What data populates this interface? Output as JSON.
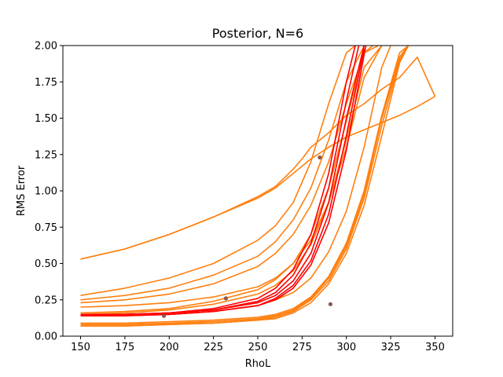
{
  "chart_data": {
    "type": "line",
    "title": "Posterior, N=6",
    "xlabel": "RhoL",
    "ylabel": "RMS Error",
    "xlim": [
      140,
      360
    ],
    "ylim": [
      0,
      2.0
    ],
    "xticks": [
      "150",
      "175",
      "200",
      "225",
      "250",
      "275",
      "300",
      "325",
      "350"
    ],
    "yticks": [
      "0.00",
      "0.25",
      "0.50",
      "0.75",
      "1.00",
      "1.25",
      "1.50",
      "1.75",
      "2.00"
    ],
    "grid": false,
    "legend": "none",
    "colors": {
      "orange": "#ff7f0e",
      "red": "#ff0000",
      "points": "#8c564b"
    },
    "series": [
      {
        "color": "orange",
        "x": [
          150,
          175,
          200,
          225,
          250,
          260,
          270,
          275,
          280,
          290,
          300,
          310,
          320,
          330,
          340,
          350
        ],
        "y": [
          0.53,
          0.6,
          0.7,
          0.82,
          0.96,
          1.03,
          1.15,
          1.22,
          1.3,
          1.4,
          1.52,
          1.6,
          1.7,
          1.78,
          1.92,
          1.65
        ]
      },
      {
        "color": "orange",
        "x": [
          150,
          175,
          200,
          225,
          250,
          260,
          270,
          280,
          290,
          300,
          310,
          320,
          330,
          340,
          350
        ],
        "y": [
          0.53,
          0.6,
          0.7,
          0.82,
          0.95,
          1.02,
          1.12,
          1.22,
          1.3,
          1.37,
          1.42,
          1.47,
          1.52,
          1.58,
          1.65
        ]
      },
      {
        "color": "orange",
        "x": [
          150,
          175,
          200,
          225,
          250,
          260,
          270,
          280,
          290,
          300,
          305
        ],
        "y": [
          0.28,
          0.33,
          0.4,
          0.5,
          0.66,
          0.76,
          0.92,
          1.2,
          1.6,
          1.95,
          2.0
        ]
      },
      {
        "color": "orange",
        "x": [
          150,
          175,
          200,
          225,
          250,
          260,
          270,
          280,
          290,
          300,
          310
        ],
        "y": [
          0.25,
          0.28,
          0.33,
          0.42,
          0.55,
          0.65,
          0.8,
          1.02,
          1.35,
          1.75,
          2.0
        ]
      },
      {
        "color": "orange",
        "x": [
          150,
          175,
          200,
          225,
          250,
          260,
          270,
          280,
          290,
          300,
          310,
          315
        ],
        "y": [
          0.23,
          0.25,
          0.29,
          0.36,
          0.48,
          0.57,
          0.7,
          0.9,
          1.2,
          1.6,
          1.95,
          2.0
        ]
      },
      {
        "color": "orange",
        "x": [
          150,
          175,
          200,
          225,
          250,
          260,
          270,
          280,
          290,
          300,
          310,
          320
        ],
        "y": [
          0.2,
          0.21,
          0.23,
          0.27,
          0.34,
          0.4,
          0.5,
          0.66,
          0.92,
          1.3,
          1.78,
          2.0
        ]
      },
      {
        "color": "orange",
        "x": [
          150,
          175,
          200,
          225,
          250,
          260,
          270,
          280,
          290,
          300,
          310,
          320,
          325
        ],
        "y": [
          0.14,
          0.14,
          0.15,
          0.17,
          0.21,
          0.25,
          0.3,
          0.4,
          0.58,
          0.86,
          1.3,
          1.85,
          2.0
        ]
      },
      {
        "color": "orange",
        "x": [
          150,
          175,
          200,
          225,
          250,
          260,
          270,
          280,
          290,
          300,
          310,
          320,
          330,
          335
        ],
        "y": [
          0.07,
          0.07,
          0.08,
          0.09,
          0.11,
          0.13,
          0.17,
          0.25,
          0.38,
          0.6,
          0.95,
          1.45,
          1.9,
          2.0
        ]
      },
      {
        "color": "orange",
        "x": [
          150,
          175,
          200,
          225,
          250,
          260,
          270,
          280,
          290,
          300,
          310,
          320,
          330,
          335
        ],
        "y": [
          0.09,
          0.09,
          0.1,
          0.11,
          0.13,
          0.15,
          0.19,
          0.27,
          0.41,
          0.64,
          1.0,
          1.52,
          1.95,
          2.0
        ]
      },
      {
        "color": "orange",
        "x": [
          150,
          175,
          200,
          225,
          250,
          260,
          270,
          280,
          290,
          300,
          310,
          320,
          330,
          335
        ],
        "y": [
          0.08,
          0.08,
          0.09,
          0.1,
          0.12,
          0.14,
          0.18,
          0.26,
          0.4,
          0.62,
          0.98,
          1.5,
          1.92,
          2.0
        ]
      },
      {
        "color": "orange",
        "x": [
          150,
          175,
          200,
          225,
          250,
          260,
          270,
          280,
          290,
          300,
          310,
          320,
          330,
          335
        ],
        "y": [
          0.07,
          0.07,
          0.08,
          0.09,
          0.11,
          0.12,
          0.16,
          0.23,
          0.36,
          0.57,
          0.9,
          1.38,
          1.88,
          2.0
        ]
      },
      {
        "color": "orange",
        "x": [
          150,
          175,
          200,
          225,
          250,
          260,
          270,
          280,
          290,
          300,
          310,
          320,
          330,
          335
        ],
        "y": [
          0.08,
          0.08,
          0.09,
          0.1,
          0.12,
          0.14,
          0.18,
          0.26,
          0.4,
          0.62,
          0.98,
          1.5,
          1.92,
          2.0
        ]
      },
      {
        "color": "orange",
        "x": [
          150,
          175,
          200,
          225,
          250,
          260,
          270,
          280,
          290,
          300,
          310,
          320
        ],
        "y": [
          0.15,
          0.16,
          0.18,
          0.22,
          0.29,
          0.35,
          0.45,
          0.63,
          0.92,
          1.35,
          1.85,
          2.0
        ]
      },
      {
        "color": "orange",
        "x": [
          150,
          175,
          200,
          225,
          250,
          260,
          270,
          280,
          290,
          300,
          310,
          318
        ],
        "y": [
          0.16,
          0.17,
          0.19,
          0.24,
          0.32,
          0.39,
          0.5,
          0.7,
          1.02,
          1.48,
          1.95,
          2.0
        ]
      },
      {
        "color": "red",
        "x": [
          150,
          175,
          200,
          225,
          250,
          260,
          270,
          280,
          290,
          300,
          305
        ],
        "y": [
          0.15,
          0.15,
          0.16,
          0.19,
          0.26,
          0.33,
          0.46,
          0.7,
          1.12,
          1.75,
          2.0
        ]
      },
      {
        "color": "red",
        "x": [
          150,
          175,
          200,
          225,
          250,
          260,
          270,
          280,
          290,
          300,
          307
        ],
        "y": [
          0.15,
          0.15,
          0.16,
          0.18,
          0.24,
          0.3,
          0.42,
          0.64,
          1.02,
          1.62,
          2.0
        ]
      },
      {
        "color": "red",
        "x": [
          150,
          175,
          200,
          225,
          250,
          260,
          270,
          280,
          290,
          300,
          310
        ],
        "y": [
          0.15,
          0.15,
          0.16,
          0.18,
          0.23,
          0.28,
          0.38,
          0.57,
          0.92,
          1.5,
          2.0
        ]
      },
      {
        "color": "red",
        "x": [
          150,
          175,
          200,
          225,
          250,
          260,
          270,
          280,
          290,
          300,
          310
        ],
        "y": [
          0.15,
          0.15,
          0.15,
          0.17,
          0.21,
          0.26,
          0.35,
          0.52,
          0.84,
          1.38,
          1.98
        ]
      },
      {
        "color": "red",
        "x": [
          150,
          175,
          200,
          225,
          250,
          260,
          270,
          280,
          290,
          300,
          311
        ],
        "y": [
          0.14,
          0.14,
          0.15,
          0.17,
          0.21,
          0.25,
          0.33,
          0.49,
          0.78,
          1.28,
          2.0
        ]
      }
    ],
    "points": {
      "x": [
        197,
        232,
        285,
        291
      ],
      "y": [
        0.14,
        0.26,
        1.23,
        0.22
      ]
    }
  }
}
